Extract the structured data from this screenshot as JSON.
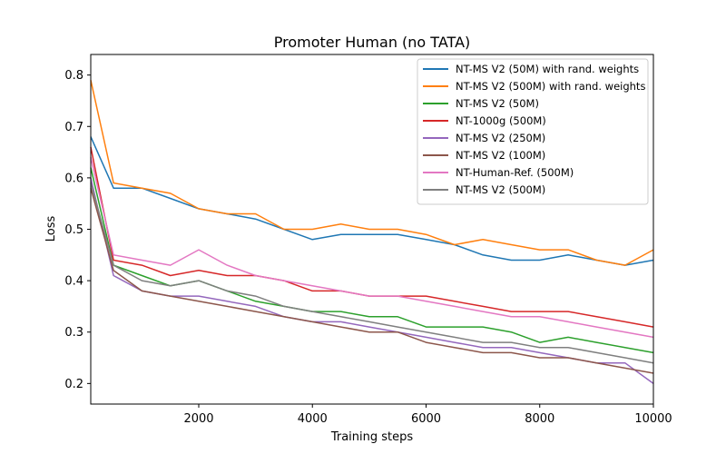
{
  "chart_data": {
    "type": "line",
    "title": "Promoter Human (no TATA)",
    "xlabel": "Training steps",
    "ylabel": "Loss",
    "xlim": [
      100,
      10000
    ],
    "ylim": [
      0.16,
      0.84
    ],
    "xticks": [
      2000,
      4000,
      6000,
      8000,
      10000
    ],
    "yticks": [
      0.2,
      0.3,
      0.4,
      0.5,
      0.6,
      0.7,
      0.8
    ],
    "grid": false,
    "legend_position": "top-right",
    "x": [
      100,
      500,
      1000,
      1500,
      2000,
      2500,
      3000,
      3500,
      4000,
      4500,
      5000,
      5500,
      6000,
      6500,
      7000,
      7500,
      8000,
      8500,
      9000,
      9500,
      10000
    ],
    "series": [
      {
        "name": "NT-MS V2 (50M) with rand. weights",
        "color": "#1f77b4",
        "values": [
          0.68,
          0.58,
          0.58,
          0.56,
          0.54,
          0.53,
          0.52,
          0.5,
          0.48,
          0.49,
          0.49,
          0.49,
          0.48,
          0.47,
          0.45,
          0.44,
          0.44,
          0.45,
          0.44,
          0.43,
          0.44
        ]
      },
      {
        "name": "NT-MS V2 (500M) with rand. weights",
        "color": "#ff7f0e",
        "values": [
          0.79,
          0.59,
          0.58,
          0.57,
          0.54,
          0.53,
          0.53,
          0.5,
          0.5,
          0.51,
          0.5,
          0.5,
          0.49,
          0.47,
          0.48,
          0.47,
          0.46,
          0.46,
          0.44,
          0.43,
          0.46
        ]
      },
      {
        "name": "NT-MS V2 (50M)",
        "color": "#2ca02c",
        "values": [
          0.62,
          0.43,
          0.41,
          0.39,
          0.4,
          0.38,
          0.36,
          0.35,
          0.34,
          0.34,
          0.33,
          0.33,
          0.31,
          0.31,
          0.31,
          0.3,
          0.28,
          0.29,
          0.28,
          0.27,
          0.26
        ]
      },
      {
        "name": "NT-1000g (500M)",
        "color": "#d62728",
        "values": [
          0.66,
          0.44,
          0.43,
          0.41,
          0.42,
          0.41,
          0.41,
          0.4,
          0.38,
          0.38,
          0.37,
          0.37,
          0.37,
          0.36,
          0.35,
          0.34,
          0.34,
          0.34,
          0.33,
          0.32,
          0.31
        ]
      },
      {
        "name": "NT-MS V2 (250M)",
        "color": "#9467bd",
        "values": [
          0.6,
          0.41,
          0.38,
          0.37,
          0.37,
          0.36,
          0.35,
          0.33,
          0.32,
          0.32,
          0.31,
          0.3,
          0.29,
          0.28,
          0.27,
          0.27,
          0.26,
          0.25,
          0.24,
          0.24,
          0.2
        ]
      },
      {
        "name": "NT-MS V2 (100M)",
        "color": "#8c564b",
        "values": [
          0.58,
          0.42,
          0.38,
          0.37,
          0.36,
          0.35,
          0.34,
          0.33,
          0.32,
          0.31,
          0.3,
          0.3,
          0.28,
          0.27,
          0.26,
          0.26,
          0.25,
          0.25,
          0.24,
          0.23,
          0.22
        ]
      },
      {
        "name": "NT-Human-Ref. (500M)",
        "color": "#e377c2",
        "values": [
          0.64,
          0.45,
          0.44,
          0.43,
          0.46,
          0.43,
          0.41,
          0.4,
          0.39,
          0.38,
          0.37,
          0.37,
          0.36,
          0.35,
          0.34,
          0.33,
          0.33,
          0.32,
          0.31,
          0.3,
          0.29
        ]
      },
      {
        "name": "NT-MS V2 (500M)",
        "color": "#7f7f7f",
        "values": [
          0.59,
          0.43,
          0.4,
          0.39,
          0.4,
          0.38,
          0.37,
          0.35,
          0.34,
          0.33,
          0.32,
          0.31,
          0.3,
          0.29,
          0.28,
          0.28,
          0.27,
          0.27,
          0.26,
          0.25,
          0.24
        ]
      }
    ]
  }
}
